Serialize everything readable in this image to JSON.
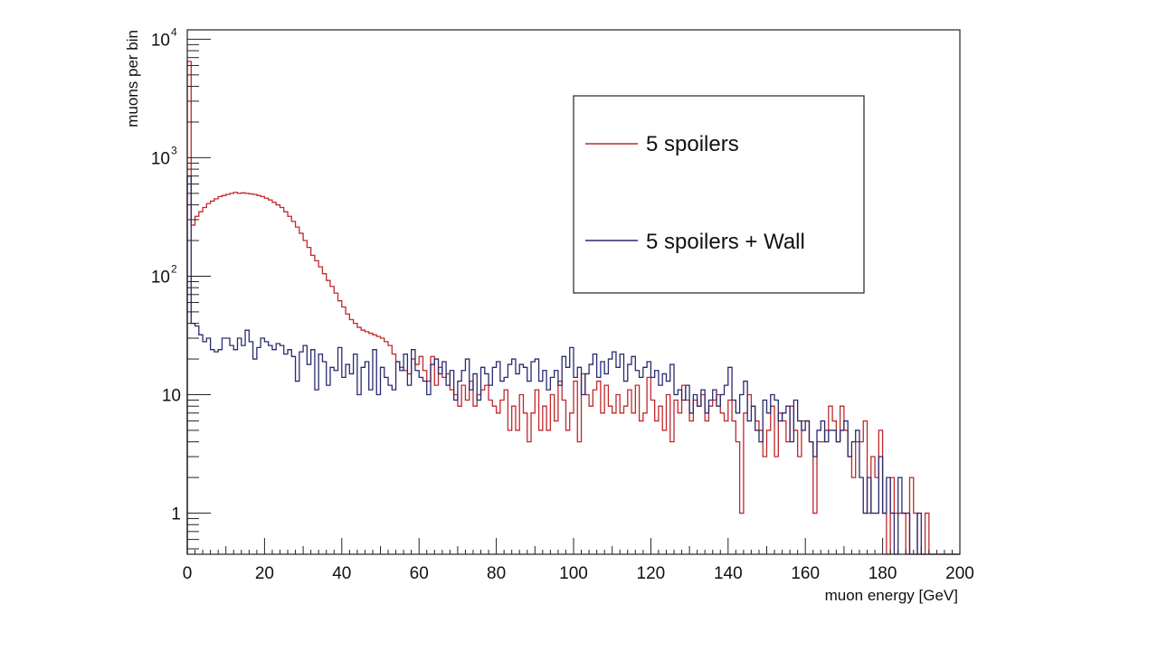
{
  "chart_data": {
    "type": "line",
    "step": true,
    "xlabel": "muon energy [GeV]",
    "ylabel": "muons per bin",
    "xlim": [
      0,
      200
    ],
    "ylim": [
      0.45,
      12000
    ],
    "yscale": "log",
    "x_ticks": [
      0,
      20,
      40,
      60,
      80,
      100,
      120,
      140,
      160,
      180,
      200
    ],
    "y_ticks": [
      {
        "value": 1,
        "label": "1"
      },
      {
        "value": 10,
        "label": "10"
      },
      {
        "value": 100,
        "base": "10",
        "exp": "2"
      },
      {
        "value": 1000,
        "base": "10",
        "exp": "3"
      },
      {
        "value": 10000,
        "base": "10",
        "exp": "4"
      }
    ],
    "grid": false,
    "legend": "top-right",
    "bin_width": 1,
    "series": [
      {
        "name": "5 spoilers",
        "color": "#c0282d",
        "values": [
          6500,
          270,
          320,
          350,
          380,
          410,
          430,
          450,
          470,
          480,
          490,
          500,
          510,
          500,
          505,
          500,
          495,
          490,
          480,
          470,
          455,
          440,
          420,
          400,
          380,
          350,
          320,
          290,
          260,
          230,
          200,
          175,
          150,
          135,
          120,
          105,
          92,
          82,
          72,
          62,
          55,
          48,
          43,
          40,
          37,
          35,
          34,
          33,
          32,
          31,
          30,
          28,
          26,
          22,
          19,
          17,
          16,
          15,
          20,
          18,
          21,
          16,
          13,
          21,
          12,
          17,
          14,
          15,
          11,
          10,
          8,
          12,
          9,
          13,
          8,
          10,
          11,
          12,
          9,
          8,
          7,
          9,
          11,
          5,
          8,
          5,
          10,
          7,
          4,
          7,
          11,
          5,
          8,
          5,
          10,
          6,
          13,
          9,
          5,
          7,
          13,
          4,
          15,
          10,
          8,
          11,
          13,
          7,
          12,
          8,
          7,
          10,
          7,
          8,
          11,
          7,
          12,
          6,
          7,
          14,
          9,
          6,
          8,
          5,
          10,
          4,
          9,
          7,
          12,
          9,
          6,
          9,
          8,
          10,
          6,
          8,
          9,
          10,
          7,
          6,
          9,
          6,
          4,
          1,
          7,
          10,
          8,
          6,
          5,
          3,
          5,
          8,
          3,
          7,
          6,
          4,
          8,
          5,
          3,
          6,
          6,
          4,
          1,
          4,
          4,
          5,
          8,
          6,
          4,
          8,
          5,
          3,
          2,
          4,
          4,
          6,
          1,
          3,
          2,
          5,
          1,
          0,
          2,
          1,
          1,
          1,
          0,
          2,
          1,
          0,
          0,
          1,
          0,
          0,
          0,
          0,
          0,
          0,
          0,
          0
        ]
      },
      {
        "name": "5 spoilers + Wall",
        "color": "#2a2a6e",
        "values": [
          700,
          40,
          38,
          32,
          28,
          30,
          24,
          23,
          24,
          30,
          30,
          26,
          24,
          30,
          26,
          35,
          28,
          20,
          25,
          30,
          28,
          26,
          24,
          27,
          26,
          22,
          24,
          21,
          13,
          23,
          26,
          18,
          24,
          11,
          22,
          19,
          12,
          17,
          16,
          25,
          14,
          18,
          15,
          22,
          10,
          17,
          19,
          11,
          24,
          10,
          17,
          14,
          12,
          11,
          19,
          16,
          22,
          12,
          24,
          16,
          14,
          13,
          10,
          18,
          20,
          15,
          19,
          12,
          16,
          9,
          13,
          16,
          20,
          11,
          15,
          9,
          17,
          15,
          12,
          17,
          19,
          13,
          14,
          18,
          20,
          15,
          18,
          17,
          13,
          19,
          20,
          13,
          16,
          11,
          14,
          16,
          12,
          21,
          17,
          25,
          14,
          17,
          10,
          15,
          18,
          22,
          14,
          19,
          15,
          20,
          23,
          17,
          22,
          13,
          18,
          21,
          16,
          14,
          17,
          19,
          14,
          16,
          12,
          15,
          13,
          18,
          10,
          11,
          9,
          12,
          7,
          10,
          8,
          11,
          7,
          9,
          11,
          8,
          10,
          12,
          17,
          9,
          7,
          10,
          13,
          6,
          8,
          5,
          4,
          9,
          7,
          10,
          9,
          6,
          7,
          8,
          4,
          9,
          6,
          5,
          6,
          4,
          3,
          5,
          6,
          4,
          5,
          5,
          4,
          5,
          6,
          3,
          4,
          5,
          2,
          1,
          2,
          1,
          1,
          3,
          1,
          2,
          1,
          0,
          2,
          1,
          1,
          0,
          0,
          1,
          0,
          0,
          0,
          0,
          0,
          0,
          0,
          0,
          0,
          0
        ]
      }
    ]
  }
}
